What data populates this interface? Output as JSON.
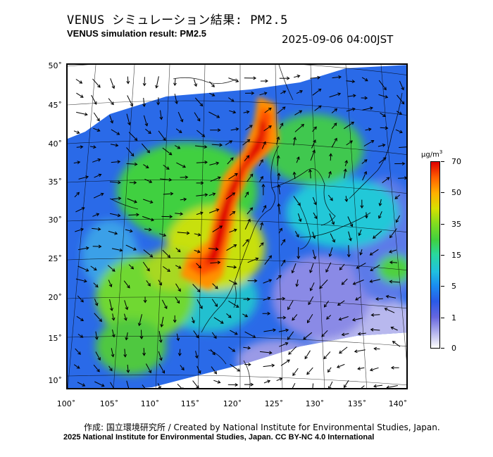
{
  "header": {
    "title_jp": "VENUS シミュレーション結果: PM2.5",
    "title_en": "VENUS simulation result: PM2.5",
    "timestamp": "2025-09-06 04:00JST"
  },
  "map": {
    "latitude_labels": [
      "50˚",
      "45˚",
      "40˚",
      "35˚",
      "30˚",
      "25˚",
      "20˚",
      "15˚",
      "10˚"
    ],
    "longitude_labels": [
      "100˚",
      "105˚",
      "110˚",
      "115˚",
      "120˚",
      "125˚",
      "130˚",
      "135˚",
      "140˚"
    ],
    "pollution_hotspot": "North China Plain (red, ~70 µg/m³)"
  },
  "colorbar": {
    "unit": "µg/m",
    "unit_power": "3",
    "ticks": [
      "70",
      "50",
      "35",
      "15",
      "5",
      "1",
      "0"
    ],
    "colors": {
      "max": "#e00000",
      "high": "#ff6000",
      "mid": "#40d040",
      "low": "#2a5ae8",
      "min": "#ffffff"
    }
  },
  "footer": {
    "credit": "作成: 国立環境研究所 / Created by National Institute for Environmental Studies, Japan.",
    "copyright": "2025 National Institute for Environmental Studies, Japan. CC BY-NC 4.0 International"
  }
}
